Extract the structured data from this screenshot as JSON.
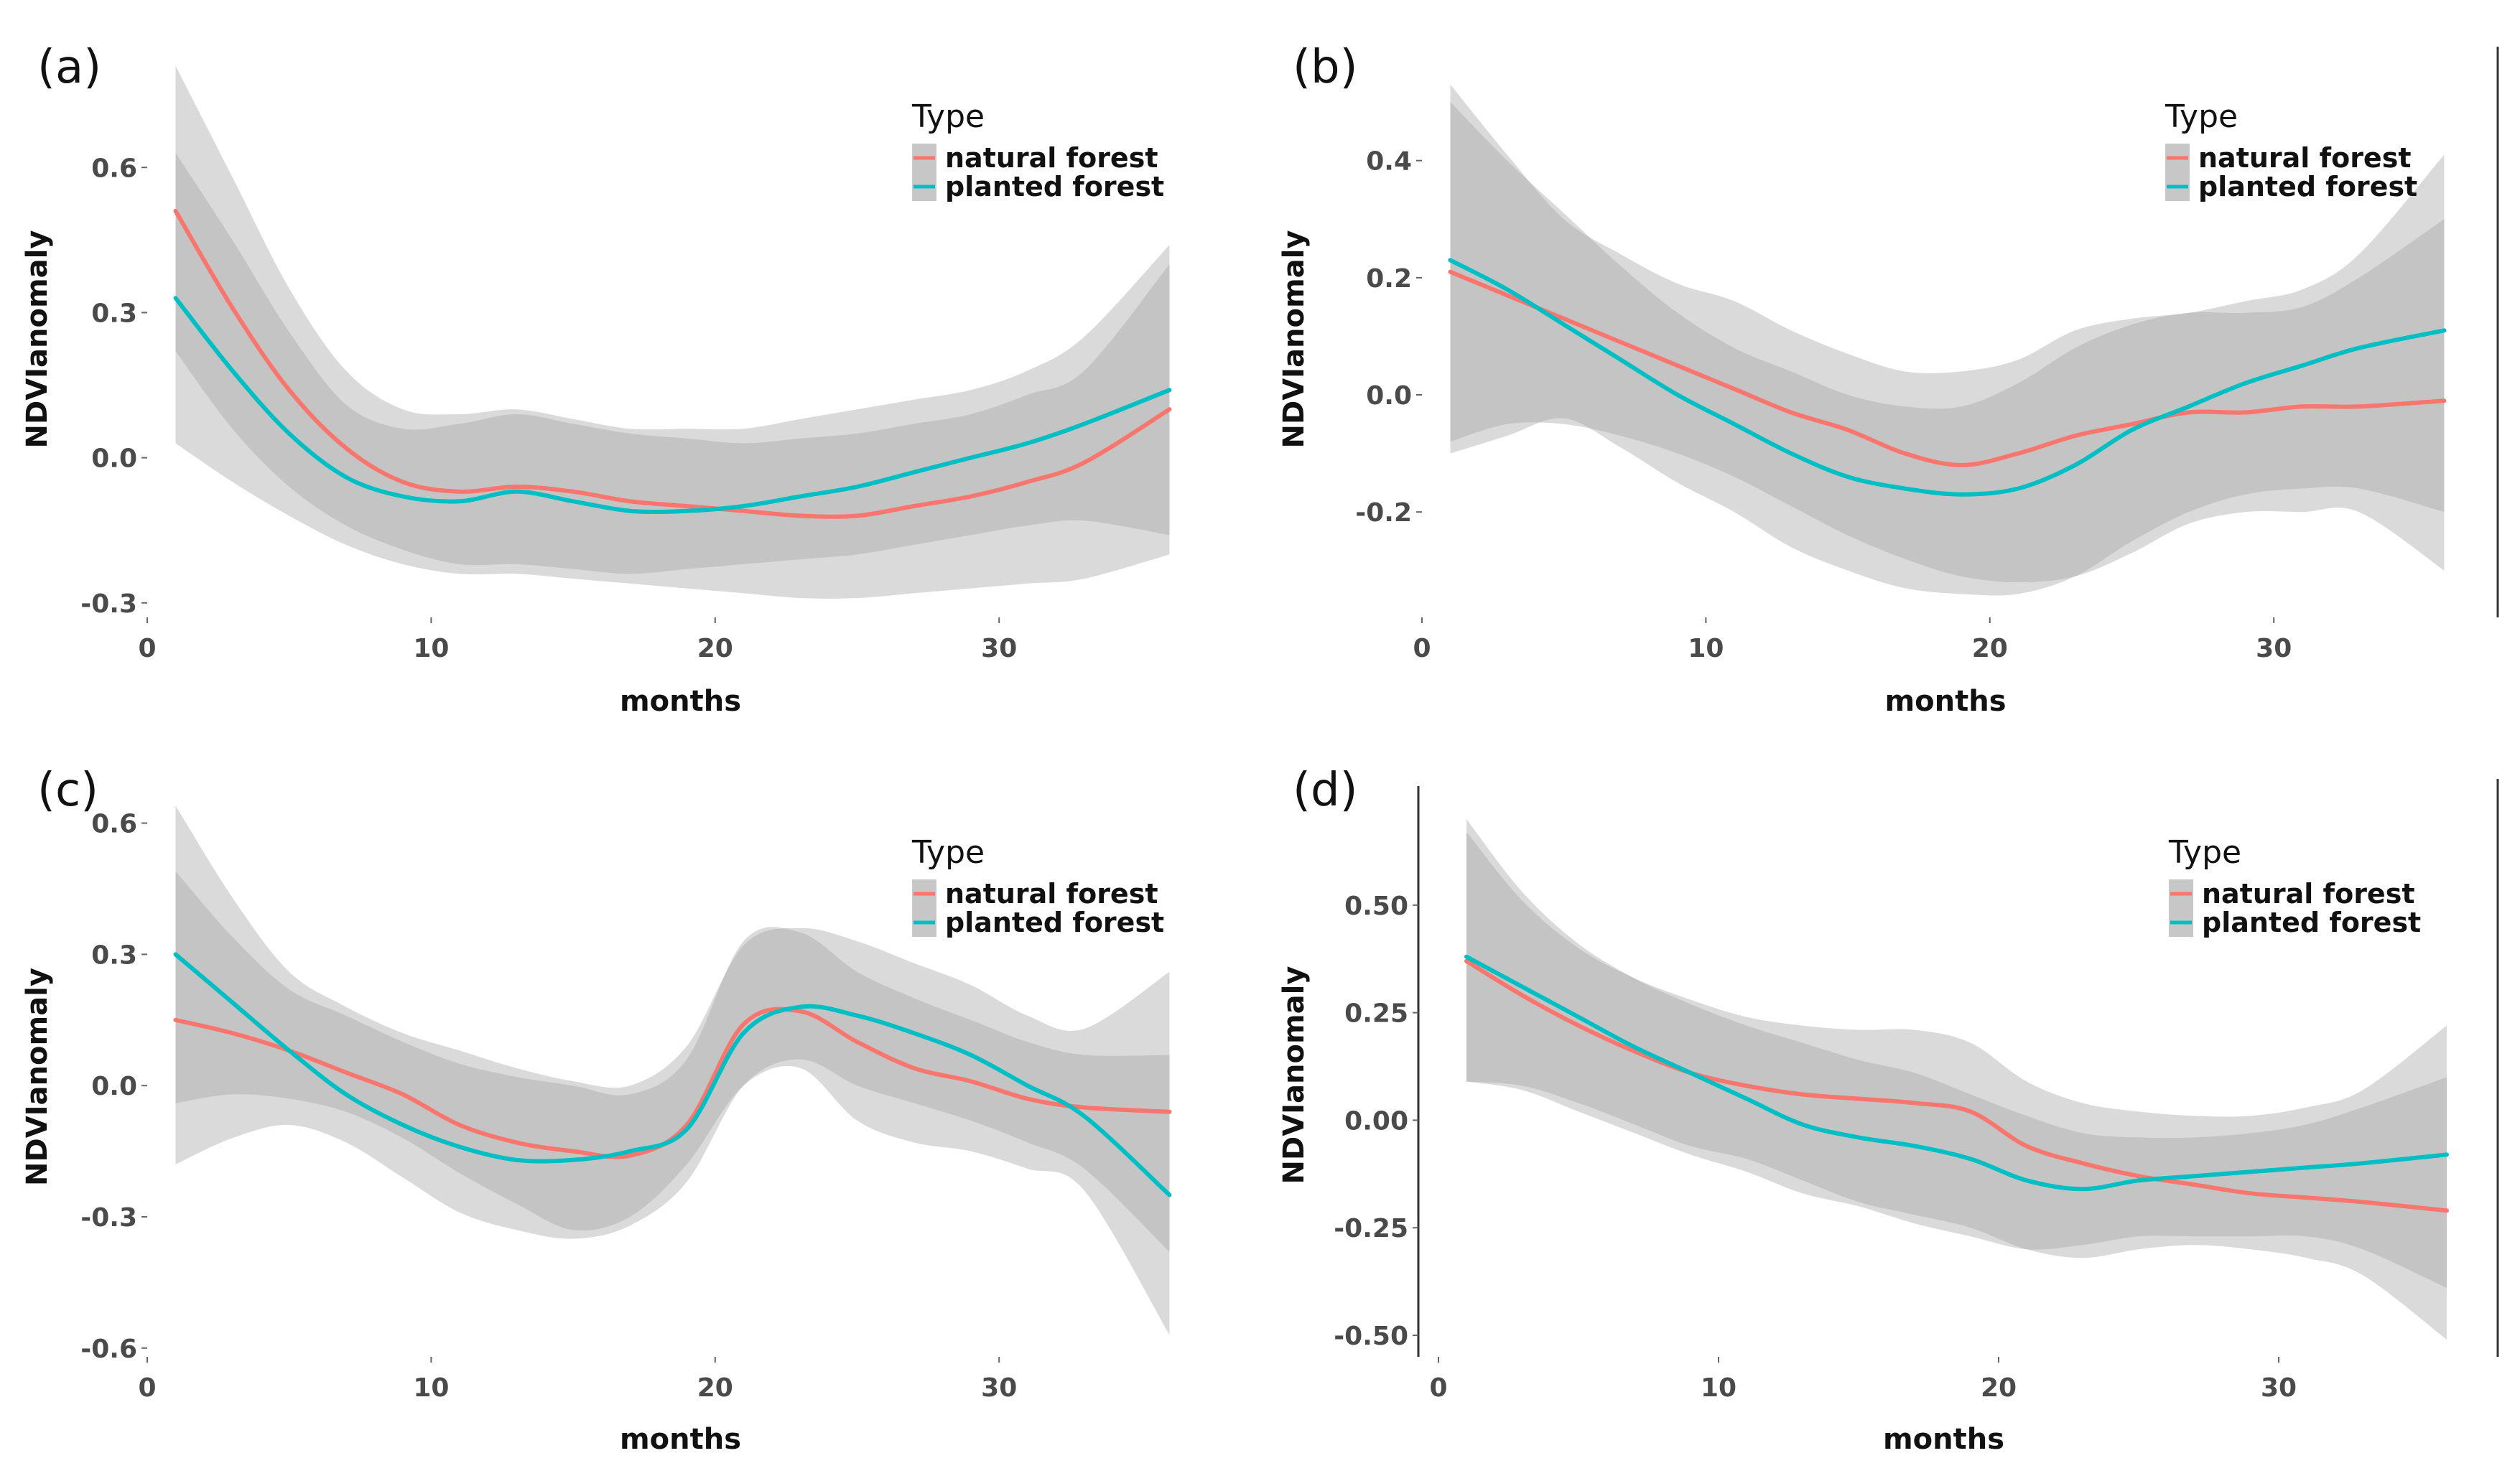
{
  "chart_data": [
    {
      "type": "line",
      "panel_label": "(a)",
      "xlabel": "months",
      "ylabel": "NDVIanomaly",
      "xlim": [
        0,
        37
      ],
      "ylim": [
        -0.33,
        0.82
      ],
      "xticks": [
        0,
        10,
        20,
        30
      ],
      "yticks": [
        -0.3,
        0.0,
        0.3,
        0.6
      ],
      "ytick_labels": [
        "-0.3",
        "0.0",
        "0.3",
        "0.6"
      ],
      "legend": {
        "title": "Type",
        "position": "top-right"
      },
      "x": [
        1,
        3,
        5,
        7,
        9,
        11,
        13,
        15,
        17,
        19,
        21,
        23,
        25,
        27,
        29,
        31,
        33,
        36
      ],
      "series": [
        {
          "name": "natural forest",
          "color": "#f8766d",
          "values": [
            0.51,
            0.31,
            0.14,
            0.02,
            -0.05,
            -0.07,
            -0.06,
            -0.07,
            -0.09,
            -0.1,
            -0.11,
            -0.12,
            -0.12,
            -0.1,
            -0.08,
            -0.05,
            -0.01,
            0.1
          ],
          "lower": [
            0.03,
            -0.05,
            -0.12,
            -0.18,
            -0.22,
            -0.24,
            -0.24,
            -0.25,
            -0.26,
            -0.27,
            -0.28,
            -0.29,
            -0.29,
            -0.28,
            -0.27,
            -0.26,
            -0.25,
            -0.2
          ],
          "upper": [
            0.81,
            0.58,
            0.35,
            0.18,
            0.1,
            0.09,
            0.1,
            0.08,
            0.06,
            0.06,
            0.06,
            0.08,
            0.1,
            0.12,
            0.14,
            0.18,
            0.25,
            0.44
          ]
        },
        {
          "name": "planted forest",
          "color": "#00bfc4",
          "values": [
            0.33,
            0.18,
            0.05,
            -0.04,
            -0.08,
            -0.09,
            -0.07,
            -0.09,
            -0.11,
            -0.11,
            -0.1,
            -0.08,
            -0.06,
            -0.03,
            0.0,
            0.03,
            0.07,
            0.14
          ],
          "lower": [
            0.22,
            0.06,
            -0.06,
            -0.14,
            -0.19,
            -0.22,
            -0.22,
            -0.23,
            -0.24,
            -0.23,
            -0.22,
            -0.21,
            -0.2,
            -0.18,
            -0.16,
            -0.14,
            -0.13,
            -0.16
          ],
          "upper": [
            0.63,
            0.45,
            0.26,
            0.11,
            0.06,
            0.07,
            0.09,
            0.07,
            0.05,
            0.04,
            0.03,
            0.04,
            0.05,
            0.07,
            0.09,
            0.13,
            0.18,
            0.4
          ]
        }
      ]
    },
    {
      "type": "line",
      "panel_label": "(b)",
      "xlabel": "months",
      "ylabel": "NDVIanomaly",
      "xlim": [
        0,
        37
      ],
      "ylim": [
        -0.38,
        0.57
      ],
      "xticks": [
        0,
        10,
        20,
        30
      ],
      "yticks": [
        -0.2,
        0.0,
        0.2,
        0.4
      ],
      "ytick_labels": [
        "-0.2",
        "0.0",
        "0.2",
        "0.4"
      ],
      "legend": {
        "title": "Type",
        "position": "top-right"
      },
      "x": [
        1,
        3,
        5,
        7,
        9,
        11,
        13,
        15,
        17,
        19,
        21,
        23,
        25,
        27,
        29,
        31,
        33,
        36
      ],
      "series": [
        {
          "name": "natural forest",
          "color": "#f8766d",
          "values": [
            0.21,
            0.17,
            0.13,
            0.09,
            0.05,
            0.01,
            -0.03,
            -0.06,
            -0.1,
            -0.12,
            -0.1,
            -0.07,
            -0.05,
            -0.03,
            -0.03,
            -0.02,
            -0.02,
            -0.01
          ],
          "lower": [
            -0.08,
            -0.05,
            -0.05,
            -0.07,
            -0.1,
            -0.14,
            -0.19,
            -0.24,
            -0.28,
            -0.31,
            -0.32,
            -0.31,
            -0.27,
            -0.22,
            -0.2,
            -0.2,
            -0.2,
            -0.3
          ],
          "upper": [
            0.53,
            0.41,
            0.3,
            0.24,
            0.19,
            0.16,
            0.11,
            0.07,
            0.04,
            0.04,
            0.06,
            0.11,
            0.13,
            0.14,
            0.16,
            0.18,
            0.24,
            0.41
          ]
        },
        {
          "name": "planted forest",
          "color": "#00bfc4",
          "values": [
            0.23,
            0.18,
            0.12,
            0.06,
            0.0,
            -0.05,
            -0.1,
            -0.14,
            -0.16,
            -0.17,
            -0.16,
            -0.12,
            -0.06,
            -0.02,
            0.02,
            0.05,
            0.08,
            0.11
          ],
          "lower": [
            -0.1,
            -0.07,
            -0.04,
            -0.09,
            -0.15,
            -0.2,
            -0.26,
            -0.3,
            -0.33,
            -0.34,
            -0.34,
            -0.31,
            -0.25,
            -0.2,
            -0.17,
            -0.16,
            -0.16,
            -0.2
          ],
          "upper": [
            0.5,
            0.4,
            0.31,
            0.22,
            0.14,
            0.08,
            0.04,
            0.0,
            -0.02,
            -0.02,
            0.02,
            0.08,
            0.12,
            0.14,
            0.14,
            0.15,
            0.2,
            0.3
          ]
        }
      ]
    },
    {
      "type": "line",
      "panel_label": "(c)",
      "xlabel": "months",
      "ylabel": "NDVIanomaly",
      "xlim": [
        0,
        37
      ],
      "ylim": [
        -0.62,
        0.66
      ],
      "xticks": [
        0,
        10,
        20,
        30
      ],
      "yticks": [
        -0.6,
        -0.3,
        0.0,
        0.3,
        0.6
      ],
      "ytick_labels": [
        "-0.6",
        "-0.3",
        "0.0",
        "0.3",
        "0.6"
      ],
      "legend": {
        "title": "Type",
        "position": "top-right"
      },
      "x": [
        1,
        3,
        5,
        7,
        9,
        11,
        13,
        15,
        17,
        19,
        21,
        23,
        25,
        27,
        29,
        31,
        33,
        36
      ],
      "series": [
        {
          "name": "natural forest",
          "color": "#f8766d",
          "values": [
            0.15,
            0.12,
            0.08,
            0.03,
            -0.02,
            -0.09,
            -0.13,
            -0.15,
            -0.16,
            -0.09,
            0.14,
            0.17,
            0.1,
            0.04,
            0.01,
            -0.03,
            -0.05,
            -0.06
          ],
          "lower": [
            -0.04,
            -0.02,
            -0.03,
            -0.06,
            -0.12,
            -0.2,
            -0.27,
            -0.33,
            -0.3,
            -0.18,
            0.0,
            0.04,
            -0.08,
            -0.13,
            -0.15,
            -0.19,
            -0.24,
            -0.57
          ],
          "upper": [
            0.49,
            0.34,
            0.22,
            0.16,
            0.1,
            0.05,
            0.02,
            0.0,
            -0.02,
            0.06,
            0.33,
            0.35,
            0.26,
            0.2,
            0.15,
            0.1,
            0.07,
            0.07
          ]
        },
        {
          "name": "planted forest",
          "color": "#00bfc4",
          "values": [
            0.3,
            0.19,
            0.08,
            -0.02,
            -0.09,
            -0.14,
            -0.17,
            -0.17,
            -0.15,
            -0.1,
            0.12,
            0.18,
            0.16,
            0.12,
            0.07,
            0.0,
            -0.07,
            -0.25
          ],
          "lower": [
            -0.18,
            -0.12,
            -0.09,
            -0.13,
            -0.21,
            -0.29,
            -0.33,
            -0.35,
            -0.32,
            -0.22,
            0.0,
            0.06,
            0.0,
            -0.04,
            -0.08,
            -0.13,
            -0.19,
            -0.38
          ],
          "upper": [
            0.64,
            0.43,
            0.26,
            0.18,
            0.12,
            0.08,
            0.04,
            0.01,
            0.0,
            0.09,
            0.32,
            0.36,
            0.33,
            0.28,
            0.23,
            0.16,
            0.13,
            0.26
          ]
        }
      ]
    },
    {
      "type": "line",
      "panel_label": "(d)",
      "xlabel": "months",
      "ylabel": "NDVIanomaly",
      "xlim": [
        0,
        37
      ],
      "ylim": [
        -0.55,
        0.76
      ],
      "xticks": [
        0,
        10,
        20,
        30
      ],
      "yticks": [
        -0.5,
        -0.25,
        0.0,
        0.25,
        0.5
      ],
      "ytick_labels": [
        "-0.50",
        "-0.25",
        "0.00",
        "0.25",
        "0.50"
      ],
      "legend": {
        "title": "Type",
        "position": "top-right"
      },
      "x": [
        1,
        3,
        5,
        7,
        9,
        11,
        13,
        15,
        17,
        19,
        21,
        23,
        25,
        27,
        29,
        31,
        33,
        36
      ],
      "series": [
        {
          "name": "natural forest",
          "color": "#f8766d",
          "values": [
            0.37,
            0.29,
            0.22,
            0.16,
            0.11,
            0.08,
            0.06,
            0.05,
            0.04,
            0.02,
            -0.06,
            -0.1,
            -0.13,
            -0.15,
            -0.17,
            -0.18,
            -0.19,
            -0.21
          ],
          "lower": [
            0.09,
            0.08,
            0.04,
            -0.01,
            -0.06,
            -0.09,
            -0.14,
            -0.19,
            -0.22,
            -0.25,
            -0.3,
            -0.32,
            -0.3,
            -0.29,
            -0.3,
            -0.32,
            -0.36,
            -0.51
          ],
          "upper": [
            0.67,
            0.51,
            0.4,
            0.33,
            0.28,
            0.24,
            0.22,
            0.21,
            0.21,
            0.18,
            0.09,
            0.04,
            0.02,
            0.01,
            0.01,
            0.03,
            0.07,
            0.22
          ]
        },
        {
          "name": "planted forest",
          "color": "#00bfc4",
          "values": [
            0.38,
            0.31,
            0.24,
            0.17,
            0.11,
            0.05,
            -0.01,
            -0.04,
            -0.06,
            -0.09,
            -0.14,
            -0.16,
            -0.14,
            -0.13,
            -0.12,
            -0.11,
            -0.1,
            -0.08
          ],
          "lower": [
            0.09,
            0.07,
            0.02,
            -0.03,
            -0.08,
            -0.12,
            -0.17,
            -0.2,
            -0.24,
            -0.27,
            -0.3,
            -0.29,
            -0.27,
            -0.27,
            -0.27,
            -0.27,
            -0.3,
            -0.39
          ],
          "upper": [
            0.7,
            0.53,
            0.41,
            0.33,
            0.27,
            0.22,
            0.18,
            0.14,
            0.11,
            0.06,
            0.01,
            -0.03,
            -0.04,
            -0.04,
            -0.03,
            -0.01,
            0.03,
            0.1
          ]
        }
      ]
    }
  ]
}
